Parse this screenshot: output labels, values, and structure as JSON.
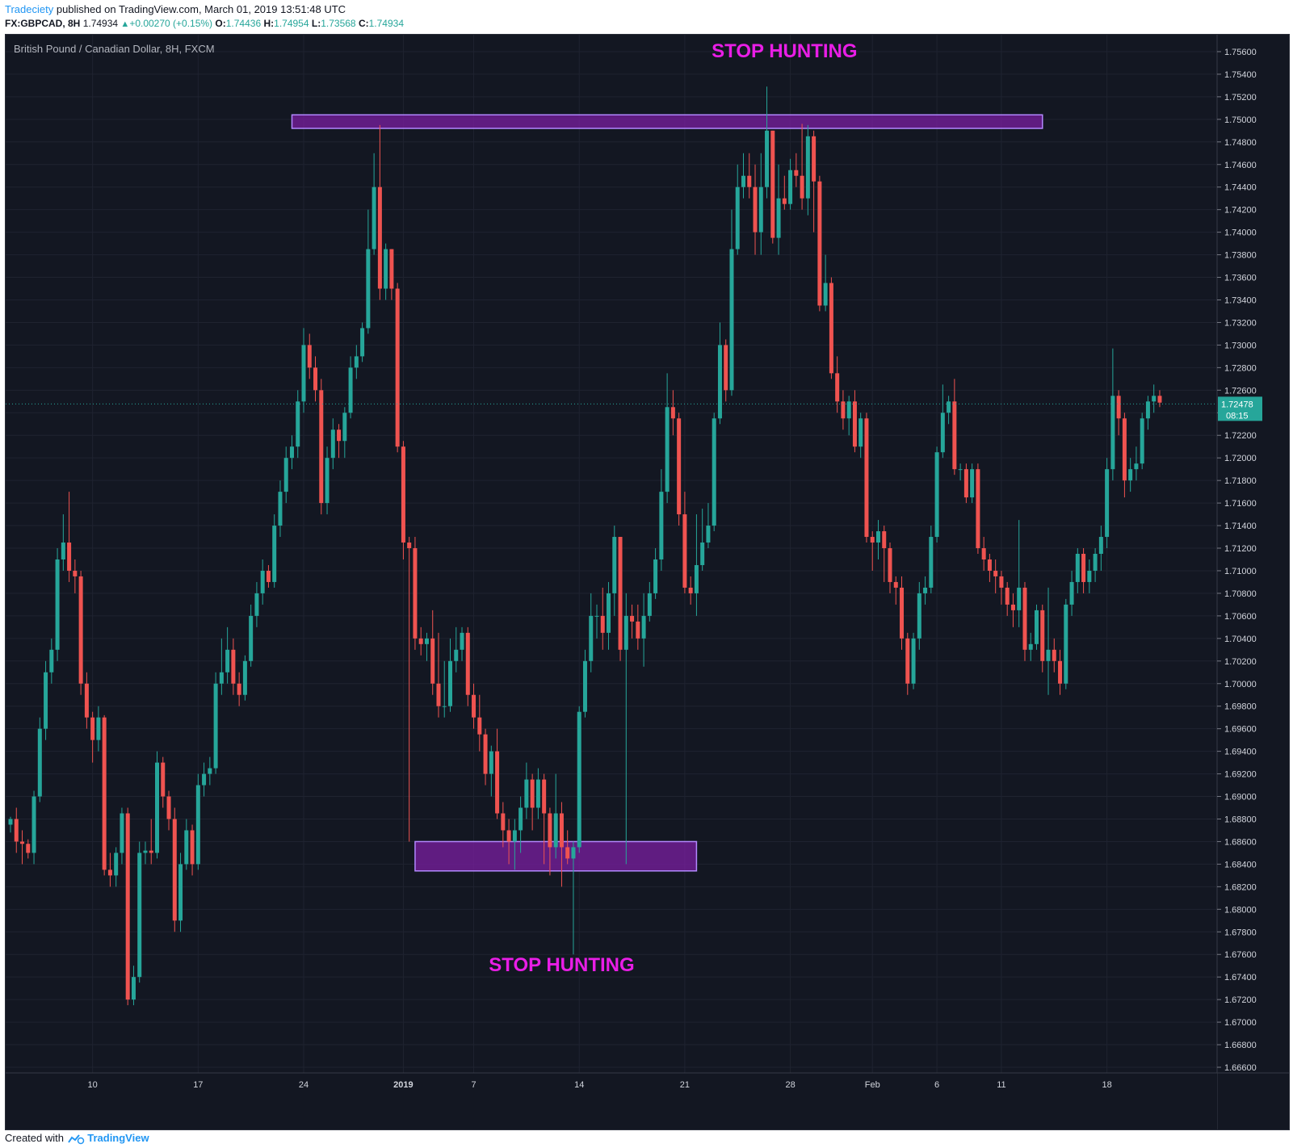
{
  "header": {
    "publisher": "Tradeciety",
    "published_text": "published on TradingView.com, March 01, 2019 13:51:48 UTC",
    "symbol": "FX:GBPCAD, 8H",
    "last": "1.74934",
    "change": "+0.00270 (+0.15%)",
    "o_label": "O:",
    "o_value": "1.74436",
    "h_label": "H:",
    "h_value": "1.74954",
    "l_label": "L:",
    "l_value": "1.73568",
    "c_label": "C:",
    "c_value": "1.74934"
  },
  "footer": {
    "created_with": "Created with",
    "brand": "TradingView"
  },
  "colors": {
    "up": "#26a69a",
    "down": "#ef5350",
    "zone_fill": "#7b1fa2",
    "zone_border": "#b388ff",
    "annotation": "#e91ee6"
  },
  "chart_data": {
    "type": "candlestick",
    "title": "British Pound / Canadian Dollar, 8H, FXCM",
    "ylim": [
      1.6655,
      1.7575
    ],
    "y_ticks": [
      "1.75600",
      "1.75400",
      "1.75200",
      "1.75000",
      "1.74800",
      "1.74600",
      "1.74400",
      "1.74200",
      "1.74000",
      "1.73800",
      "1.73600",
      "1.73400",
      "1.73200",
      "1.73000",
      "1.72800",
      "1.72600",
      "1.72400",
      "1.72200",
      "1.72000",
      "1.71800",
      "1.71600",
      "1.71400",
      "1.71200",
      "1.71000",
      "1.70800",
      "1.70600",
      "1.70400",
      "1.70200",
      "1.70000",
      "1.69800",
      "1.69600",
      "1.69400",
      "1.69200",
      "1.69000",
      "1.68800",
      "1.68600",
      "1.68400",
      "1.68200",
      "1.68000",
      "1.67800",
      "1.67600",
      "1.67400",
      "1.67200",
      "1.67000",
      "1.66800",
      "1.66600"
    ],
    "x_ticks": [
      {
        "label": "10",
        "i": 14
      },
      {
        "label": "17",
        "i": 32
      },
      {
        "label": "24",
        "i": 50
      },
      {
        "label": "2019",
        "i": 67,
        "bold": true
      },
      {
        "label": "7",
        "i": 79
      },
      {
        "label": "14",
        "i": 97
      },
      {
        "label": "21",
        "i": 115
      },
      {
        "label": "28",
        "i": 133
      },
      {
        "label": "Feb",
        "i": 147
      },
      {
        "label": "6",
        "i": 158
      },
      {
        "label": "11",
        "i": 169
      },
      {
        "label": "18",
        "i": 187
      }
    ],
    "last_price": "1.72478",
    "countdown": "08:15",
    "annotations": [
      {
        "text": "STOP HUNTING",
        "i": 132,
        "y": 1.7555
      },
      {
        "text": "STOP HUNTING",
        "i": 94,
        "y": 1.6745
      }
    ],
    "zones": [
      {
        "i1": 48,
        "i2": 176,
        "y1": 1.7504,
        "y2": 1.7492
      },
      {
        "i1": 69,
        "i2": 117,
        "y1": 1.686,
        "y2": 1.6834
      }
    ],
    "candles": [
      [
        1.6875,
        1.688,
        1.6868,
        1.6882
      ],
      [
        1.688,
        1.686,
        1.685,
        1.689
      ],
      [
        1.686,
        1.6858,
        1.684,
        1.687
      ],
      [
        1.6858,
        1.685,
        1.6845,
        1.6862
      ],
      [
        1.685,
        1.69,
        1.684,
        1.6905
      ],
      [
        1.69,
        1.696,
        1.6895,
        1.697
      ],
      [
        1.696,
        1.701,
        1.695,
        1.702
      ],
      [
        1.701,
        1.703,
        1.7,
        1.704
      ],
      [
        1.703,
        1.711,
        1.702,
        1.712
      ],
      [
        1.711,
        1.7125,
        1.71,
        1.715
      ],
      [
        1.7125,
        1.71,
        1.709,
        1.717
      ],
      [
        1.71,
        1.7095,
        1.708,
        1.711
      ],
      [
        1.7095,
        1.7,
        1.699,
        1.71
      ],
      [
        1.7,
        1.697,
        1.696,
        1.701
      ],
      [
        1.697,
        1.695,
        1.693,
        1.6975
      ],
      [
        1.695,
        1.697,
        1.694,
        1.698
      ],
      [
        1.697,
        1.6835,
        1.683,
        1.6972
      ],
      [
        1.6835,
        1.683,
        1.682,
        1.685
      ],
      [
        1.683,
        1.685,
        1.682,
        1.6855
      ],
      [
        1.685,
        1.6885,
        1.684,
        1.689
      ],
      [
        1.6885,
        1.672,
        1.6715,
        1.689
      ],
      [
        1.672,
        1.674,
        1.6715,
        1.675
      ],
      [
        1.674,
        1.685,
        1.6735,
        1.686
      ],
      [
        1.685,
        1.6852,
        1.684,
        1.686
      ],
      [
        1.6852,
        1.685,
        1.684,
        1.688
      ],
      [
        1.685,
        1.693,
        1.6845,
        1.694
      ],
      [
        1.693,
        1.69,
        1.689,
        1.6935
      ],
      [
        1.69,
        1.688,
        1.687,
        1.6905
      ],
      [
        1.688,
        1.679,
        1.678,
        1.689
      ],
      [
        1.679,
        1.684,
        1.678,
        1.685
      ],
      [
        1.684,
        1.687,
        1.6835,
        1.688
      ],
      [
        1.687,
        1.684,
        1.683,
        1.6875
      ],
      [
        1.684,
        1.691,
        1.6835,
        1.692
      ],
      [
        1.691,
        1.692,
        1.69,
        1.693
      ],
      [
        1.692,
        1.6925,
        1.691,
        1.6935
      ],
      [
        1.6925,
        1.7,
        1.692,
        1.701
      ],
      [
        1.7,
        1.701,
        1.699,
        1.704
      ],
      [
        1.701,
        1.703,
        1.7,
        1.705
      ],
      [
        1.703,
        1.7,
        1.699,
        1.704
      ],
      [
        1.7,
        1.699,
        1.698,
        1.701
      ],
      [
        1.699,
        1.702,
        1.6985,
        1.7025
      ],
      [
        1.702,
        1.706,
        1.7015,
        1.707
      ],
      [
        1.706,
        1.708,
        1.705,
        1.709
      ],
      [
        1.708,
        1.71,
        1.707,
        1.711
      ],
      [
        1.71,
        1.709,
        1.7085,
        1.7105
      ],
      [
        1.709,
        1.714,
        1.7085,
        1.715
      ],
      [
        1.714,
        1.717,
        1.713,
        1.718
      ],
      [
        1.717,
        1.72,
        1.716,
        1.721
      ],
      [
        1.72,
        1.721,
        1.719,
        1.722
      ],
      [
        1.721,
        1.725,
        1.72,
        1.726
      ],
      [
        1.725,
        1.73,
        1.724,
        1.7315
      ],
      [
        1.73,
        1.728,
        1.727,
        1.731
      ],
      [
        1.728,
        1.726,
        1.725,
        1.729
      ],
      [
        1.726,
        1.716,
        1.715,
        1.727
      ],
      [
        1.716,
        1.72,
        1.715,
        1.721
      ],
      [
        1.72,
        1.7225,
        1.719,
        1.7235
      ],
      [
        1.7225,
        1.7215,
        1.72,
        1.723
      ],
      [
        1.7215,
        1.724,
        1.72,
        1.7245
      ],
      [
        1.724,
        1.728,
        1.7235,
        1.729
      ],
      [
        1.728,
        1.729,
        1.727,
        1.73
      ],
      [
        1.729,
        1.7315,
        1.7285,
        1.732
      ],
      [
        1.7315,
        1.7385,
        1.731,
        1.742
      ],
      [
        1.7385,
        1.744,
        1.738,
        1.747
      ],
      [
        1.744,
        1.735,
        1.734,
        1.7495
      ],
      [
        1.735,
        1.7385,
        1.734,
        1.739
      ],
      [
        1.7385,
        1.735,
        1.734,
        1.7385
      ],
      [
        1.735,
        1.721,
        1.7205,
        1.7355
      ],
      [
        1.721,
        1.7125,
        1.711,
        1.7215
      ],
      [
        1.7125,
        1.712,
        1.686,
        1.713
      ],
      [
        1.712,
        1.704,
        1.703,
        1.713
      ],
      [
        1.704,
        1.7035,
        1.7025,
        1.705
      ],
      [
        1.7035,
        1.704,
        1.702,
        1.7045
      ],
      [
        1.704,
        1.7,
        1.699,
        1.7065
      ],
      [
        1.7,
        1.698,
        1.697,
        1.7045
      ],
      [
        1.698,
        1.698,
        1.697,
        1.702
      ],
      [
        1.698,
        1.702,
        1.6975,
        1.704
      ],
      [
        1.702,
        1.703,
        1.701,
        1.705
      ],
      [
        1.703,
        1.7045,
        1.702,
        1.705
      ],
      [
        1.7045,
        1.699,
        1.698,
        1.705
      ],
      [
        1.699,
        1.697,
        1.696,
        1.7
      ],
      [
        1.697,
        1.6955,
        1.694,
        1.699
      ],
      [
        1.6955,
        1.692,
        1.691,
        1.696
      ],
      [
        1.692,
        1.694,
        1.69,
        1.6945
      ],
      [
        1.694,
        1.6885,
        1.688,
        1.696
      ],
      [
        1.6885,
        1.687,
        1.6855,
        1.6895
      ],
      [
        1.687,
        1.686,
        1.684,
        1.688
      ],
      [
        1.686,
        1.687,
        1.6835,
        1.688
      ],
      [
        1.687,
        1.689,
        1.685,
        1.69
      ],
      [
        1.689,
        1.6915,
        1.688,
        1.693
      ],
      [
        1.6915,
        1.689,
        1.687,
        1.692
      ],
      [
        1.689,
        1.6915,
        1.688,
        1.6925
      ],
      [
        1.6915,
        1.6885,
        1.684,
        1.692
      ],
      [
        1.6885,
        1.6855,
        1.683,
        1.689
      ],
      [
        1.6855,
        1.6885,
        1.6845,
        1.692
      ],
      [
        1.6885,
        1.6855,
        1.682,
        1.6895
      ],
      [
        1.6855,
        1.6845,
        1.684,
        1.687
      ],
      [
        1.6845,
        1.6855,
        1.676,
        1.686
      ],
      [
        1.6855,
        1.6975,
        1.685,
        1.698
      ],
      [
        1.6975,
        1.702,
        1.697,
        1.703
      ],
      [
        1.702,
        1.706,
        1.701,
        1.708
      ],
      [
        1.706,
        1.706,
        1.704,
        1.707
      ],
      [
        1.706,
        1.7045,
        1.703,
        1.7085
      ],
      [
        1.7045,
        1.708,
        1.703,
        1.709
      ],
      [
        1.708,
        1.713,
        1.706,
        1.714
      ],
      [
        1.713,
        1.703,
        1.702,
        1.713
      ],
      [
        1.703,
        1.706,
        1.684,
        1.708
      ],
      [
        1.706,
        1.7055,
        1.704,
        1.707
      ],
      [
        1.7055,
        1.704,
        1.703,
        1.707
      ],
      [
        1.704,
        1.706,
        1.7015,
        1.708
      ],
      [
        1.706,
        1.708,
        1.7055,
        1.709
      ],
      [
        1.708,
        1.711,
        1.7075,
        1.712
      ],
      [
        1.711,
        1.717,
        1.71,
        1.719
      ],
      [
        1.717,
        1.7245,
        1.716,
        1.7275
      ],
      [
        1.7245,
        1.7235,
        1.722,
        1.726
      ],
      [
        1.7235,
        1.715,
        1.714,
        1.724
      ],
      [
        1.715,
        1.7085,
        1.708,
        1.717
      ],
      [
        1.7085,
        1.708,
        1.707,
        1.7095
      ],
      [
        1.708,
        1.7105,
        1.706,
        1.715
      ],
      [
        1.7105,
        1.7125,
        1.71,
        1.7155
      ],
      [
        1.7125,
        1.714,
        1.712,
        1.716
      ],
      [
        1.714,
        1.7235,
        1.7135,
        1.724
      ],
      [
        1.7235,
        1.73,
        1.723,
        1.732
      ],
      [
        1.73,
        1.726,
        1.725,
        1.7305
      ],
      [
        1.726,
        1.7385,
        1.7255,
        1.742
      ],
      [
        1.7385,
        1.744,
        1.738,
        1.746
      ],
      [
        1.744,
        1.745,
        1.743,
        1.747
      ],
      [
        1.745,
        1.744,
        1.743,
        1.747
      ],
      [
        1.744,
        1.74,
        1.738,
        1.746
      ],
      [
        1.74,
        1.744,
        1.738,
        1.747
      ],
      [
        1.744,
        1.749,
        1.743,
        1.7529
      ],
      [
        1.749,
        1.7395,
        1.739,
        1.749
      ],
      [
        1.7395,
        1.743,
        1.738,
        1.746
      ],
      [
        1.743,
        1.7425,
        1.742,
        1.745
      ],
      [
        1.7425,
        1.7455,
        1.742,
        1.7465
      ],
      [
        1.7455,
        1.745,
        1.744,
        1.747
      ],
      [
        1.745,
        1.743,
        1.742,
        1.7496
      ],
      [
        1.743,
        1.7485,
        1.7415,
        1.7495
      ],
      [
        1.7485,
        1.7445,
        1.74,
        1.749
      ],
      [
        1.7445,
        1.7335,
        1.733,
        1.745
      ],
      [
        1.7335,
        1.7355,
        1.733,
        1.738
      ],
      [
        1.7355,
        1.7275,
        1.727,
        1.736
      ],
      [
        1.7275,
        1.725,
        1.724,
        1.729
      ],
      [
        1.725,
        1.7235,
        1.7225,
        1.726
      ],
      [
        1.7235,
        1.725,
        1.722,
        1.7255
      ],
      [
        1.725,
        1.721,
        1.7205,
        1.726
      ],
      [
        1.721,
        1.7235,
        1.72,
        1.724
      ],
      [
        1.7235,
        1.713,
        1.7125,
        1.724
      ],
      [
        1.713,
        1.7125,
        1.71,
        1.7135
      ],
      [
        1.7125,
        1.7135,
        1.711,
        1.7145
      ],
      [
        1.7135,
        1.712,
        1.709,
        1.714
      ],
      [
        1.712,
        1.709,
        1.708,
        1.7125
      ],
      [
        1.709,
        1.7085,
        1.707,
        1.7095
      ],
      [
        1.7085,
        1.704,
        1.703,
        1.7095
      ],
      [
        1.704,
        1.7,
        1.699,
        1.7045
      ],
      [
        1.7,
        1.704,
        1.6995,
        1.7045
      ],
      [
        1.704,
        1.708,
        1.703,
        1.709
      ],
      [
        1.708,
        1.7085,
        1.707,
        1.7095
      ],
      [
        1.7085,
        1.713,
        1.708,
        1.714
      ],
      [
        1.713,
        1.7205,
        1.7125,
        1.721
      ],
      [
        1.7205,
        1.724,
        1.72,
        1.7265
      ],
      [
        1.724,
        1.725,
        1.723,
        1.7255
      ],
      [
        1.725,
        1.719,
        1.7185,
        1.727
      ],
      [
        1.719,
        1.719,
        1.718,
        1.7195
      ],
      [
        1.719,
        1.7165,
        1.716,
        1.7195
      ],
      [
        1.7165,
        1.719,
        1.716,
        1.7195
      ],
      [
        1.719,
        1.712,
        1.7115,
        1.7195
      ],
      [
        1.712,
        1.711,
        1.71,
        1.713
      ],
      [
        1.711,
        1.71,
        1.709,
        1.7115
      ],
      [
        1.71,
        1.7095,
        1.708,
        1.711
      ],
      [
        1.7095,
        1.7085,
        1.707,
        1.71
      ],
      [
        1.7085,
        1.707,
        1.706,
        1.709
      ],
      [
        1.707,
        1.7065,
        1.705,
        1.708
      ],
      [
        1.7065,
        1.7085,
        1.705,
        1.7145
      ],
      [
        1.7085,
        1.703,
        1.702,
        1.709
      ],
      [
        1.703,
        1.7035,
        1.702,
        1.7045
      ],
      [
        1.7035,
        1.7065,
        1.703,
        1.707
      ],
      [
        1.7065,
        1.702,
        1.701,
        1.707
      ],
      [
        1.702,
        1.703,
        1.699,
        1.7085
      ],
      [
        1.703,
        1.702,
        1.701,
        1.704
      ],
      [
        1.702,
        1.7,
        1.699,
        1.703
      ],
      [
        1.7,
        1.707,
        1.6995,
        1.7075
      ],
      [
        1.707,
        1.709,
        1.706,
        1.71
      ],
      [
        1.709,
        1.7115,
        1.708,
        1.712
      ],
      [
        1.7115,
        1.709,
        1.708,
        1.712
      ],
      [
        1.709,
        1.71,
        1.708,
        1.711
      ],
      [
        1.71,
        1.7115,
        1.709,
        1.712
      ],
      [
        1.7115,
        1.713,
        1.71,
        1.714
      ],
      [
        1.713,
        1.719,
        1.712,
        1.72
      ],
      [
        1.719,
        1.7255,
        1.718,
        1.7297
      ],
      [
        1.7255,
        1.7235,
        1.722,
        1.726
      ],
      [
        1.7235,
        1.718,
        1.7165,
        1.724
      ],
      [
        1.718,
        1.719,
        1.717,
        1.72
      ],
      [
        1.719,
        1.7195,
        1.718,
        1.721
      ],
      [
        1.7195,
        1.7235,
        1.719,
        1.724
      ],
      [
        1.7235,
        1.725,
        1.7225,
        1.7255
      ],
      [
        1.725,
        1.7255,
        1.724,
        1.7265
      ],
      [
        1.7255,
        1.7249,
        1.7245,
        1.726
      ]
    ]
  }
}
